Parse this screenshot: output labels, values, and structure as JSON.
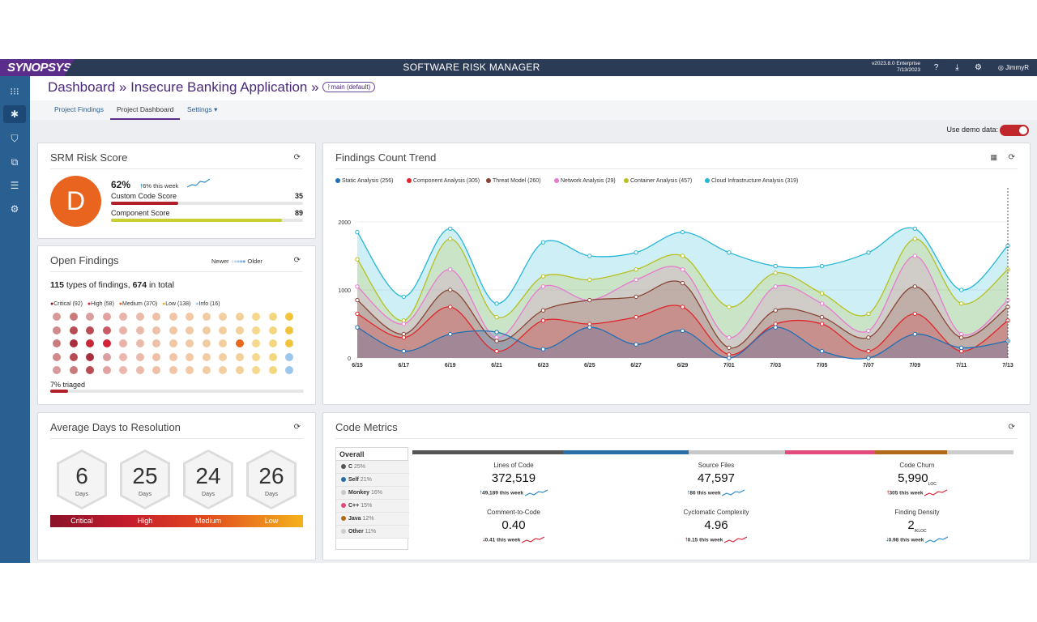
{
  "topbar": {
    "brand": "SYNOPSYS",
    "app_title": "SOFTWARE RISK MANAGER",
    "version": "v2023.8.0 Enterprise",
    "date": "7/13/2023",
    "user": "JimmyR"
  },
  "header": {
    "breadcrumb": "Dashboard » Insecure Banking Application »",
    "branch": "main (default)"
  },
  "tabs": [
    "Project Findings",
    "Project Dashboard",
    "Settings ▾"
  ],
  "demo": {
    "label": "Use demo data:"
  },
  "risk": {
    "title": "SRM Risk Score",
    "grade": "D",
    "percent": "62%",
    "week": "6% this week",
    "custom_label": "Custom Code Score",
    "custom_value": "35",
    "component_label": "Component Score",
    "component_value": "89",
    "custom_fill": 0.35,
    "component_fill": 0.89
  },
  "open": {
    "title": "Open Findings",
    "newer": "Newer",
    "older": "Older",
    "summary_types": "115",
    "summary_mid": " types of findings, ",
    "summary_total": "674",
    "summary_end": " in total",
    "legend": [
      "Critical (92)",
      "High (58)",
      "Medium (370)",
      "Low (138)",
      "Info (16)"
    ],
    "triaged": "7% triaged",
    "triaged_fill": 0.07
  },
  "avg": {
    "title": "Average Days to Resolution",
    "items": [
      {
        "value": "6",
        "label": "Days"
      },
      {
        "value": "25",
        "label": "Days"
      },
      {
        "value": "24",
        "label": "Days"
      },
      {
        "value": "26",
        "label": "Days"
      }
    ],
    "scale": [
      "Critical",
      "High",
      "Medium",
      "Low"
    ]
  },
  "trend": {
    "title": "Findings Count Trend"
  },
  "chart_data": {
    "type": "area",
    "title": "Findings Count Trend",
    "ylim": [
      0,
      2500
    ],
    "yticks": [
      0,
      1000,
      2000
    ],
    "categories": [
      "6/15",
      "6/17",
      "6/19",
      "6/21",
      "6/23",
      "6/25",
      "6/27",
      "6/29",
      "7/01",
      "7/03",
      "7/05",
      "7/07",
      "7/09",
      "7/11",
      "7/13"
    ],
    "series": [
      {
        "name": "Static Analysis (256)",
        "color": "#1f6fb4",
        "values": [
          450,
          100,
          350,
          380,
          130,
          450,
          200,
          400,
          0,
          450,
          100,
          0,
          350,
          150,
          250
        ]
      },
      {
        "name": "Component Analysis (305)",
        "color": "#e0262b",
        "values": [
          650,
          300,
          750,
          100,
          550,
          500,
          600,
          750,
          50,
          500,
          500,
          100,
          650,
          100,
          550
        ]
      },
      {
        "name": "Threat Model (260)",
        "color": "#8a4436",
        "values": [
          850,
          350,
          1000,
          250,
          700,
          850,
          900,
          1100,
          150,
          700,
          600,
          300,
          1050,
          300,
          750
        ]
      },
      {
        "name": "Network Analysis (29)",
        "color": "#e77ad0",
        "values": [
          1050,
          500,
          1300,
          300,
          1050,
          850,
          1150,
          1300,
          300,
          1050,
          800,
          400,
          1500,
          350,
          850
        ]
      },
      {
        "name": "Container Analysis (457)",
        "color": "#b8c020",
        "values": [
          1450,
          550,
          1750,
          600,
          1200,
          1150,
          1300,
          1500,
          750,
          1250,
          950,
          650,
          1750,
          800,
          1300
        ]
      },
      {
        "name": "Cloud Infrastructure Analysis (319)",
        "color": "#25b6d5",
        "values": [
          1850,
          900,
          1900,
          800,
          1700,
          1500,
          1550,
          1850,
          1550,
          1350,
          1350,
          1550,
          1900,
          1000,
          1650
        ]
      }
    ]
  },
  "code": {
    "title": "Code Metrics",
    "overall": "Overall",
    "languages": [
      {
        "name": "C",
        "pct": "25%",
        "color": "#555555"
      },
      {
        "name": "Self",
        "pct": "21%",
        "color": "#2a6fa8"
      },
      {
        "name": "Monkey",
        "pct": "16%",
        "color": "#c8c8c8"
      },
      {
        "name": "C++",
        "pct": "15%",
        "color": "#e24a7b"
      },
      {
        "name": "Java",
        "pct": "12%",
        "color": "#b26b1b"
      },
      {
        "name": "Other",
        "pct": "11%",
        "color": "#cccccc"
      }
    ],
    "shares": [
      0.25,
      0.21,
      0.16,
      0.15,
      0.12,
      0.11
    ],
    "metrics": [
      {
        "label": "Lines of Code",
        "value": "372,519",
        "week": "49,189 this week",
        "dir": "up-blue"
      },
      {
        "label": "Source Files",
        "value": "47,597",
        "week": "86 this week",
        "dir": "up-blue"
      },
      {
        "label": "Code Churn",
        "value": "5,990",
        "unit": "LOC",
        "week": "305 this week",
        "dir": "up-red"
      },
      {
        "label": "Comment-to-Code",
        "value": "0.40",
        "week": "0.41 this week",
        "dir": "down-red"
      },
      {
        "label": "Cyclomatic Complexity",
        "value": "4.96",
        "week": "0.15 this week",
        "dir": "up-red"
      },
      {
        "label": "Finding Density",
        "value": "2",
        "unit": "/KLOC",
        "week": "0.98 this week",
        "dir": "down-blue"
      }
    ]
  }
}
